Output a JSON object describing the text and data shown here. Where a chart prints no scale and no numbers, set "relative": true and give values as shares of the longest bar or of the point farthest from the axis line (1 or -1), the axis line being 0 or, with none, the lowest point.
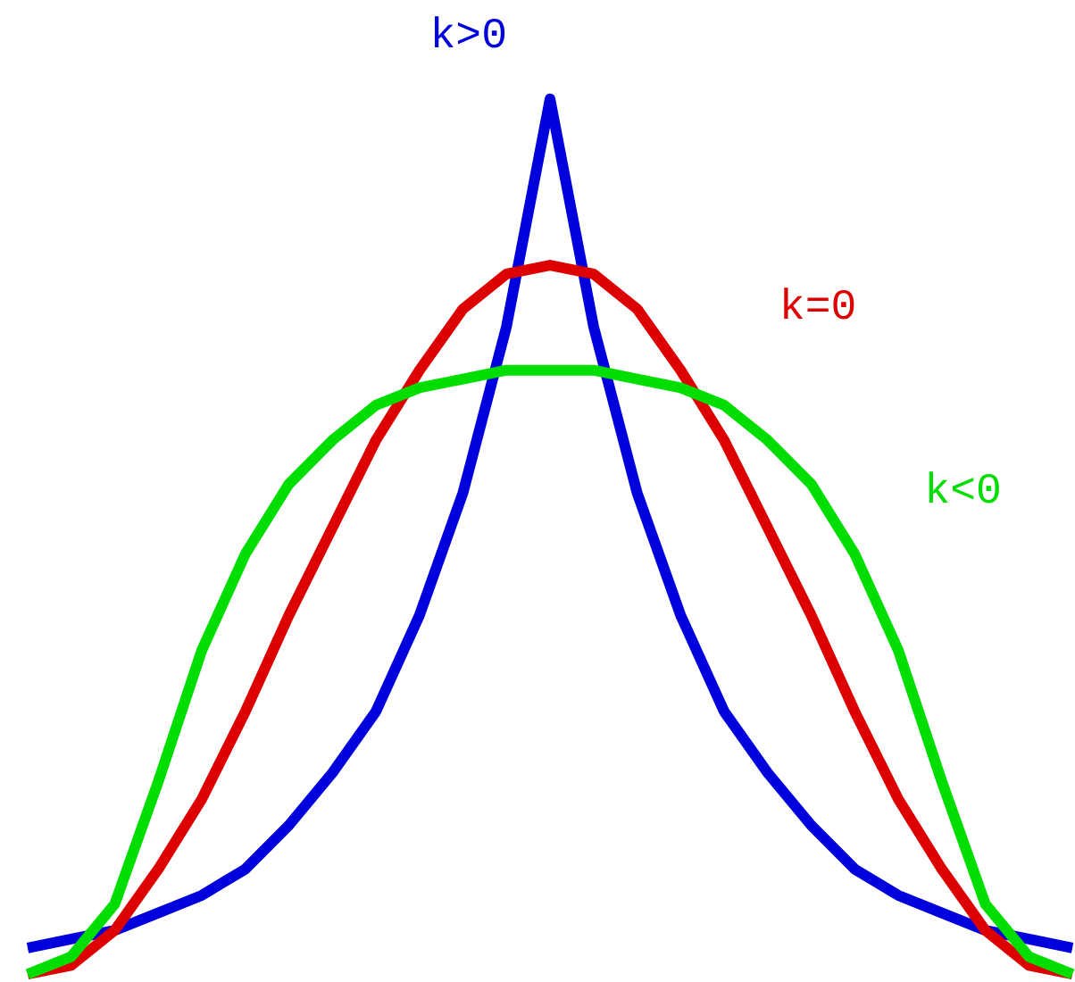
{
  "chart_data": {
    "type": "line",
    "relative": true,
    "grid": false,
    "marker": "none",
    "line_style": "solid",
    "categories": [
      null,
      null,
      null,
      null,
      null,
      null,
      null,
      null,
      null,
      null,
      null,
      null,
      null,
      null,
      null,
      null,
      null,
      null,
      null,
      null,
      null,
      null,
      null,
      null,
      null
    ],
    "series": [
      {
        "name": "k>0",
        "color": "#0000dd",
        "values": [
          0.03,
          0.04,
          0.05,
          0.07,
          0.09,
          0.12,
          0.17,
          0.23,
          0.3,
          0.41,
          0.55,
          0.74,
          1,
          0.74,
          0.55,
          0.41,
          0.3,
          0.23,
          0.17,
          0.12,
          0.09,
          0.07,
          0.05,
          0.04,
          0.03
        ]
      },
      {
        "name": "k=0",
        "color": "#dd0000",
        "values": [
          0,
          0.01,
          0.05,
          0.12,
          0.2,
          0.3,
          0.41,
          0.51,
          0.61,
          0.69,
          0.76,
          0.8,
          0.81,
          0.8,
          0.76,
          0.69,
          0.61,
          0.51,
          0.41,
          0.3,
          0.2,
          0.12,
          0.05,
          0.01,
          0
        ]
      },
      {
        "name": "k<0",
        "color": "#00dd00",
        "values": [
          0,
          0.02,
          0.08,
          0.22,
          0.37,
          0.48,
          0.56,
          0.61,
          0.65,
          0.67,
          0.68,
          0.69,
          0.69,
          0.69,
          0.68,
          0.67,
          0.65,
          0.61,
          0.56,
          0.48,
          0.37,
          0.22,
          0.08,
          0.02,
          0
        ]
      }
    ]
  }
}
